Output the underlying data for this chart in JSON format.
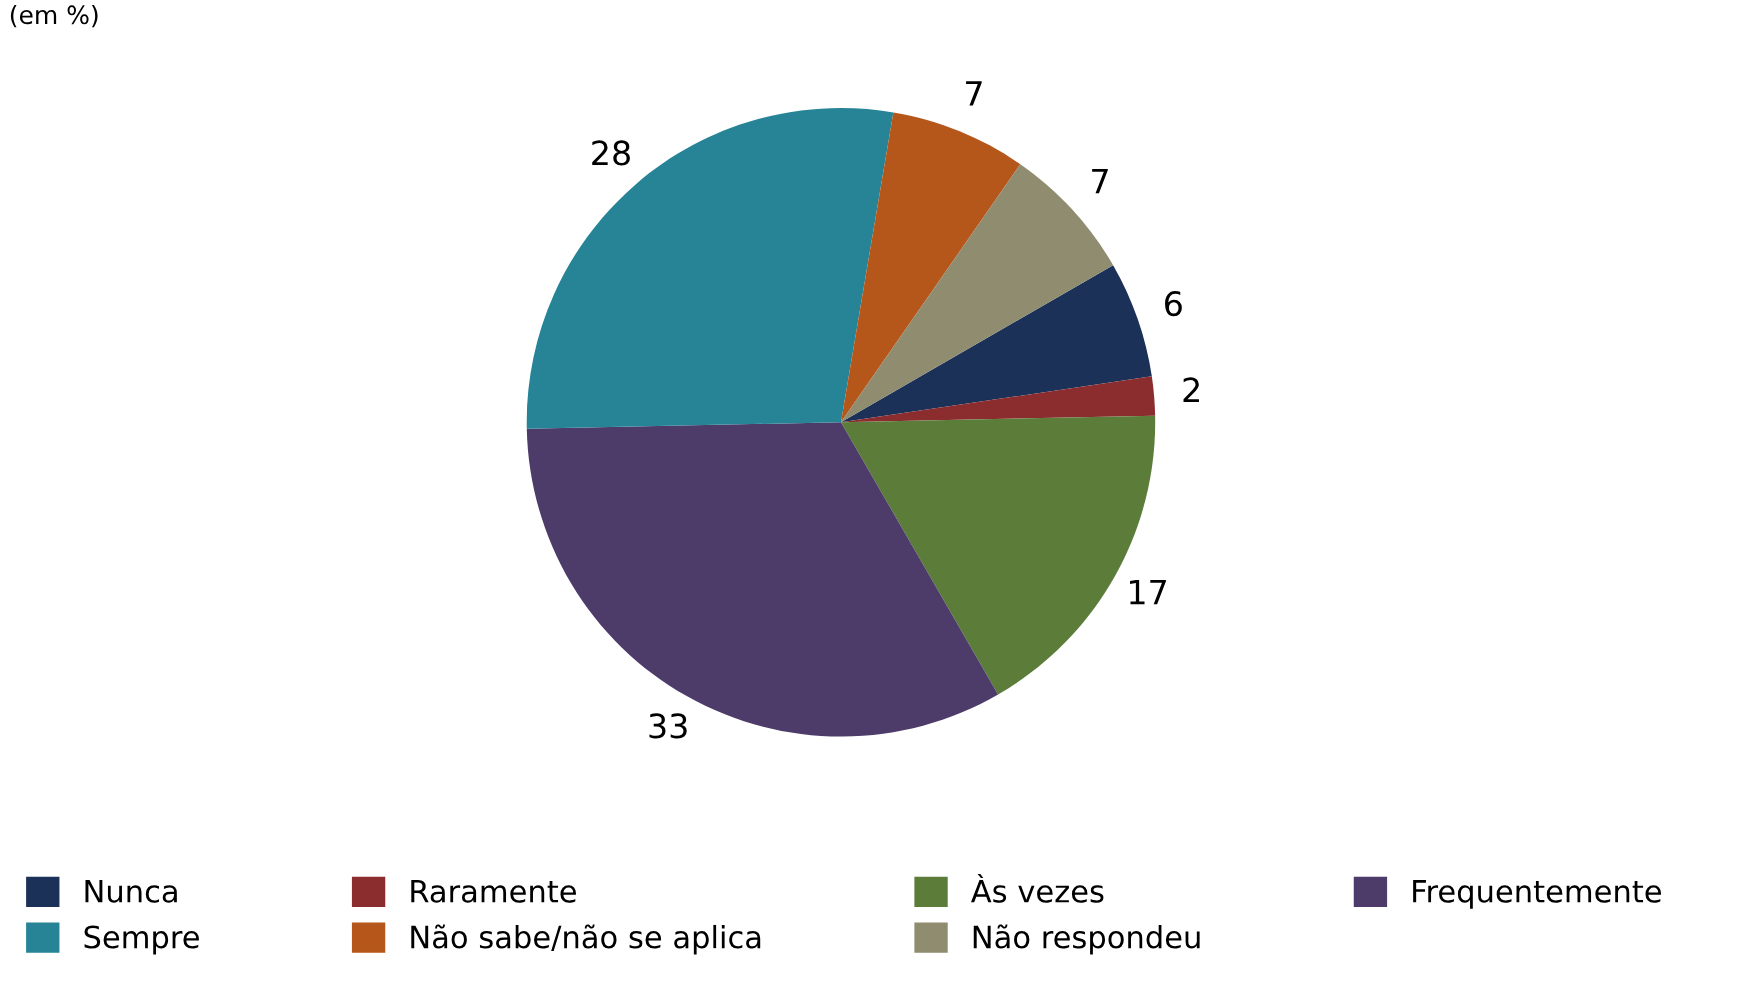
{
  "chart_data": {
    "type": "pie",
    "subtitle": "(em %)",
    "categories": [
      "Nunca",
      "Raramente",
      "Às vezes",
      "Frequentemente",
      "Sempre",
      "Não sabe/não se aplica",
      "Não respondeu"
    ],
    "values": [
      6,
      2,
      17,
      33,
      28,
      7,
      7
    ],
    "colors": [
      "#1b3158",
      "#8b2d2f",
      "#5c7c3a",
      "#4d3b6a",
      "#268496",
      "#b5561a",
      "#8f8c6f"
    ],
    "data_labels": true,
    "legend": "bottom"
  }
}
